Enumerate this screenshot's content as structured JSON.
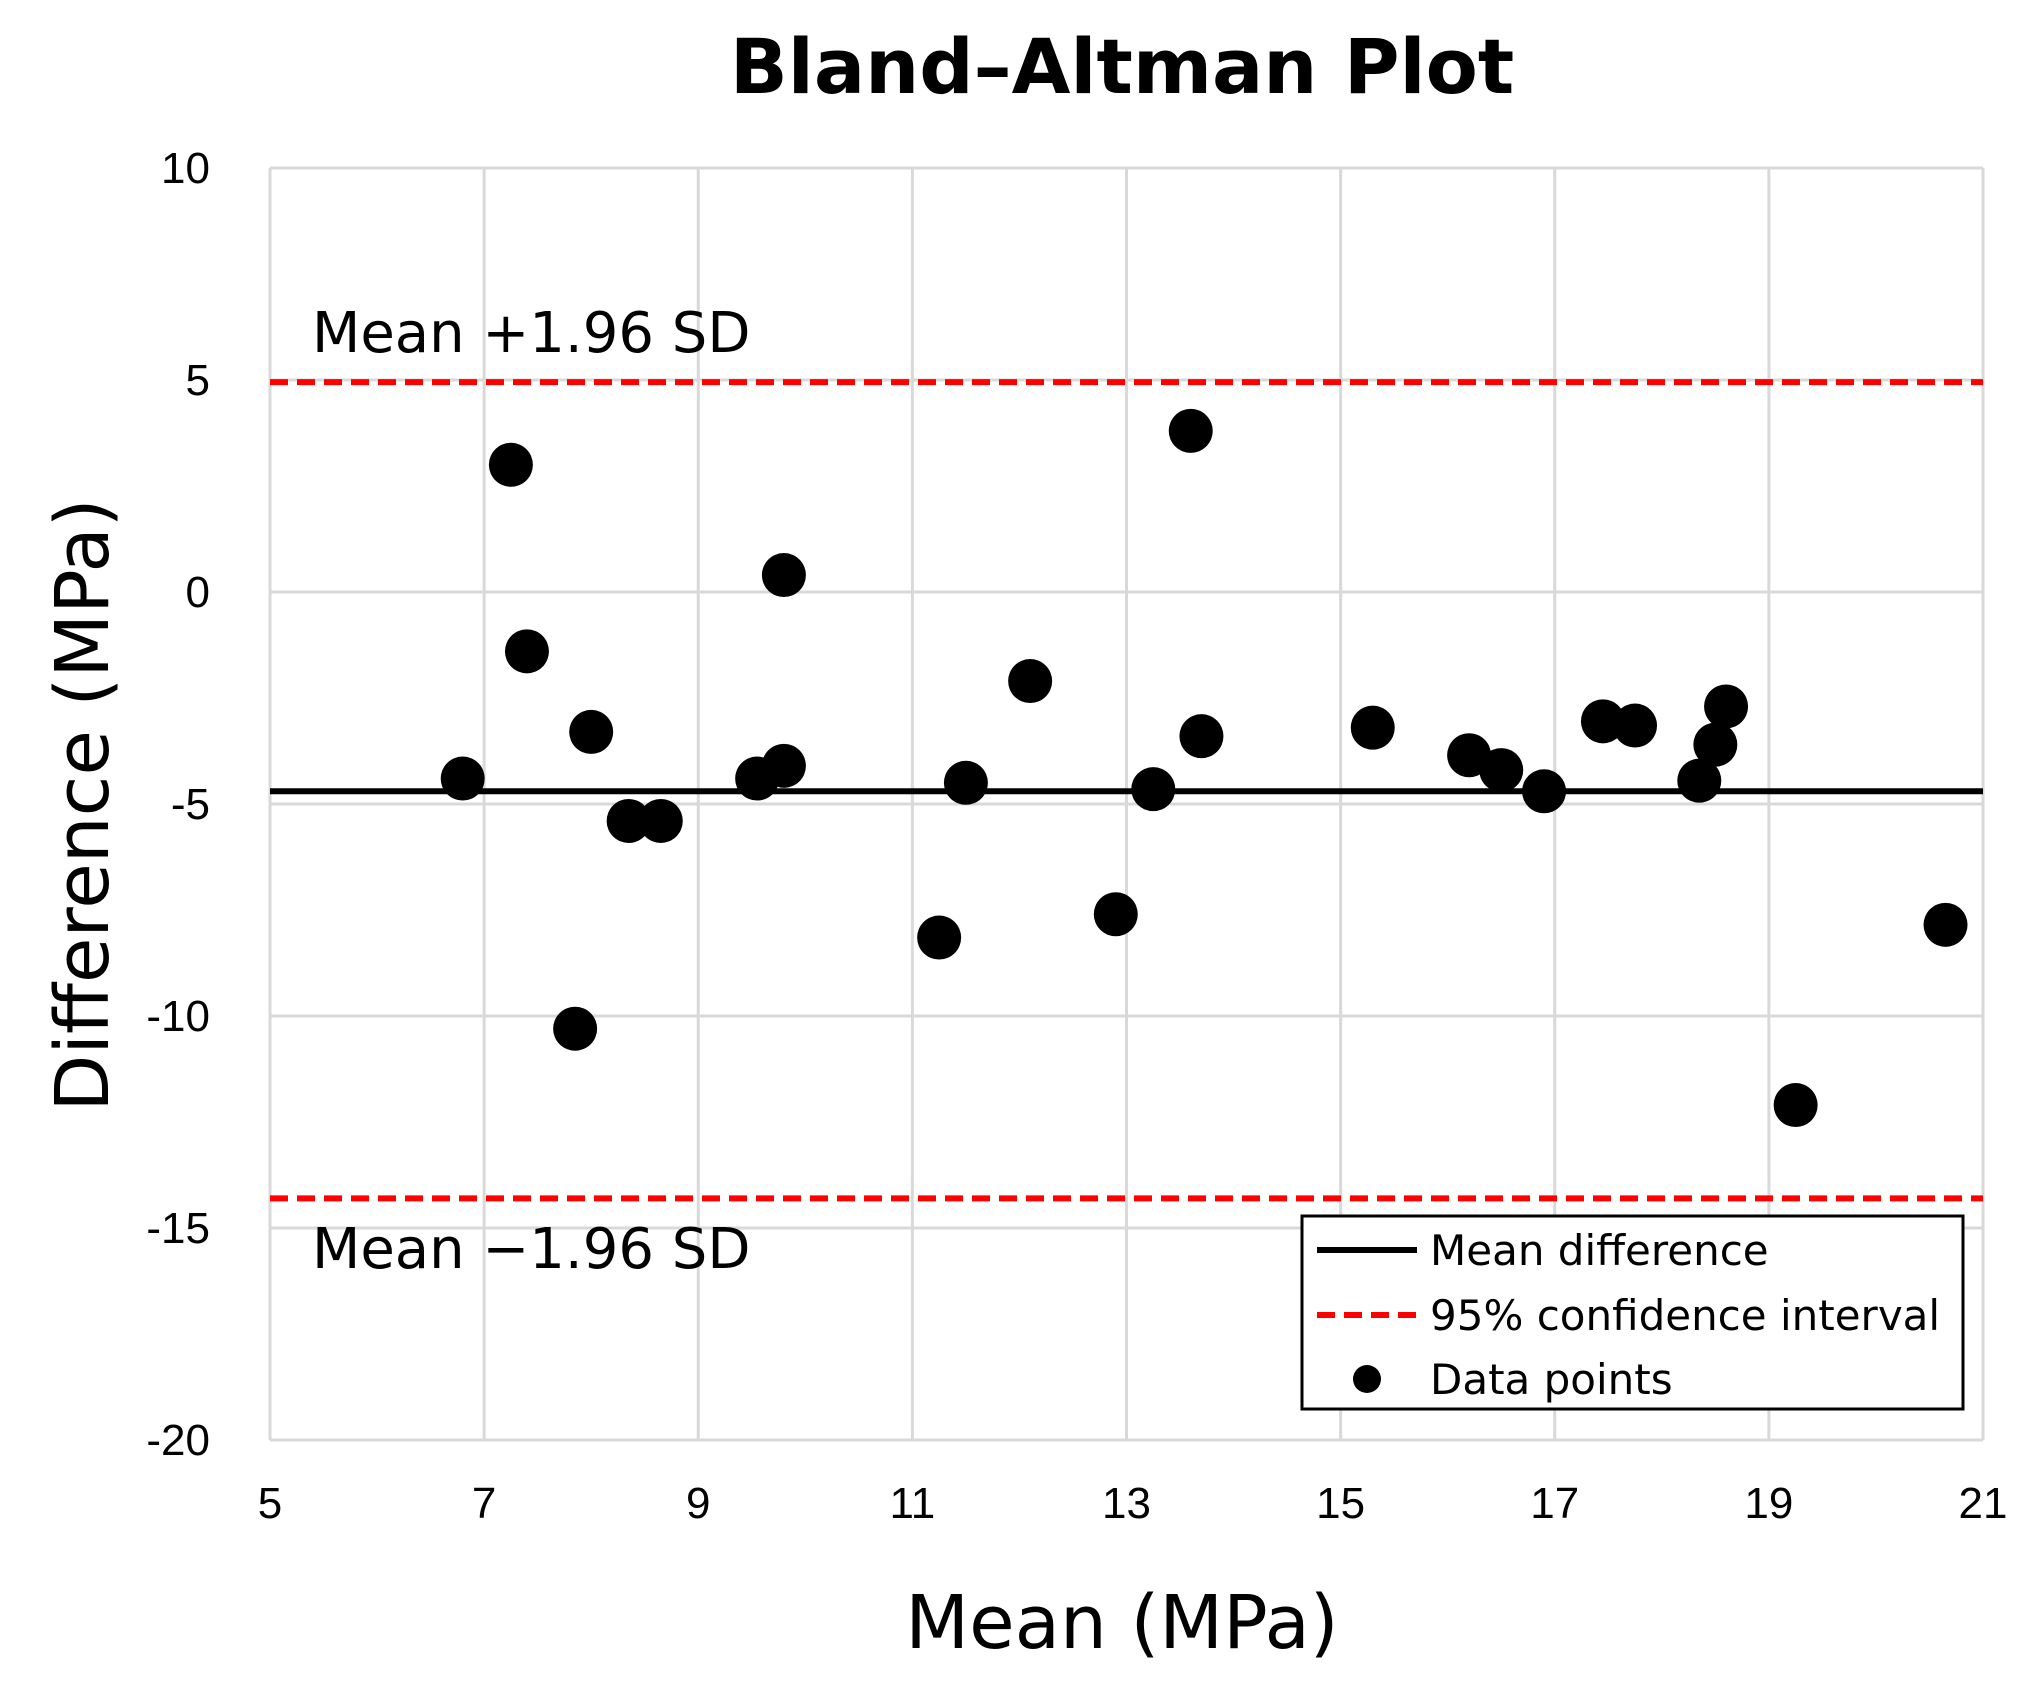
{
  "chart_data": {
    "type": "scatter",
    "title": "Bland–Altman Plot",
    "xlabel": "Mean (MPa)",
    "ylabel": "Difference (MPa)",
    "xlim": [
      5,
      21
    ],
    "ylim": [
      -20,
      10
    ],
    "xticks": [
      5,
      7,
      9,
      11,
      13,
      15,
      17,
      19,
      21
    ],
    "yticks": [
      10,
      5,
      0,
      -5,
      -10,
      -15,
      -20
    ],
    "xtick_labels": [
      "5",
      "7",
      "9",
      "11",
      "13",
      "15",
      "17",
      "19",
      "21"
    ],
    "ytick_labels": [
      "10",
      "5",
      "0",
      "-5",
      "-10",
      "-15",
      "-20"
    ],
    "grid": true,
    "mean_difference": -4.7,
    "upper_limit": 4.95,
    "lower_limit": -14.3,
    "upper_label": "Mean +1.96 SD",
    "lower_label": "Mean −1.96 SD",
    "legend": {
      "placement": "bottom-right",
      "entries": [
        {
          "label": "Mean difference",
          "style": "solid-black-line"
        },
        {
          "label": "95% confidence interval",
          "style": "dashed-red-line"
        },
        {
          "label": "Data points",
          "style": "black-marker"
        }
      ]
    },
    "series": [
      {
        "name": "Data points",
        "points": [
          {
            "x": 6.8,
            "y": -4.4
          },
          {
            "x": 7.25,
            "y": 3.0
          },
          {
            "x": 7.4,
            "y": -1.4
          },
          {
            "x": 7.85,
            "y": -10.3
          },
          {
            "x": 8.0,
            "y": -3.3
          },
          {
            "x": 8.35,
            "y": -5.4
          },
          {
            "x": 8.65,
            "y": -5.4
          },
          {
            "x": 9.55,
            "y": -4.4
          },
          {
            "x": 9.8,
            "y": 0.4
          },
          {
            "x": 9.8,
            "y": -4.1
          },
          {
            "x": 11.25,
            "y": -8.15
          },
          {
            "x": 11.5,
            "y": -4.5
          },
          {
            "x": 12.1,
            "y": -2.1
          },
          {
            "x": 12.9,
            "y": -7.6
          },
          {
            "x": 13.25,
            "y": -4.65
          },
          {
            "x": 13.6,
            "y": 3.8
          },
          {
            "x": 13.7,
            "y": -3.4
          },
          {
            "x": 15.3,
            "y": -3.2
          },
          {
            "x": 16.2,
            "y": -3.85
          },
          {
            "x": 16.5,
            "y": -4.2
          },
          {
            "x": 16.9,
            "y": -4.7
          },
          {
            "x": 17.45,
            "y": -3.05
          },
          {
            "x": 17.75,
            "y": -3.15
          },
          {
            "x": 18.35,
            "y": -4.45
          },
          {
            "x": 18.5,
            "y": -3.6
          },
          {
            "x": 18.6,
            "y": -2.7
          },
          {
            "x": 19.25,
            "y": -12.1
          },
          {
            "x": 20.65,
            "y": -7.85
          }
        ]
      }
    ]
  },
  "colors": {
    "grid": "#d9d9d9",
    "frame": "#d9d9d9",
    "mean_line": "#000000",
    "ci_line": "#ff0000",
    "marker": "#000000",
    "text": "#000000"
  }
}
